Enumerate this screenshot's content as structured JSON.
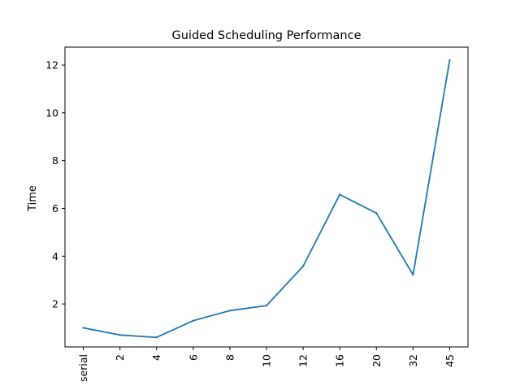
{
  "chart_data": {
    "type": "line",
    "title": "Guided Scheduling Performance",
    "xlabel": "",
    "ylabel": "Time",
    "categories": [
      "serial",
      "2",
      "4",
      "6",
      "8",
      "10",
      "12",
      "16",
      "20",
      "32",
      "45"
    ],
    "series": [
      {
        "values": [
          1.0,
          0.7,
          0.6,
          1.3,
          1.72,
          1.93,
          3.58,
          6.58,
          5.8,
          3.22,
          12.2
        ],
        "color": "#1f77b4"
      }
    ],
    "ylim": [
      0.2,
      12.75
    ],
    "yticks": [
      2,
      4,
      6,
      8,
      10,
      12
    ],
    "grid": false,
    "legend": "none"
  }
}
